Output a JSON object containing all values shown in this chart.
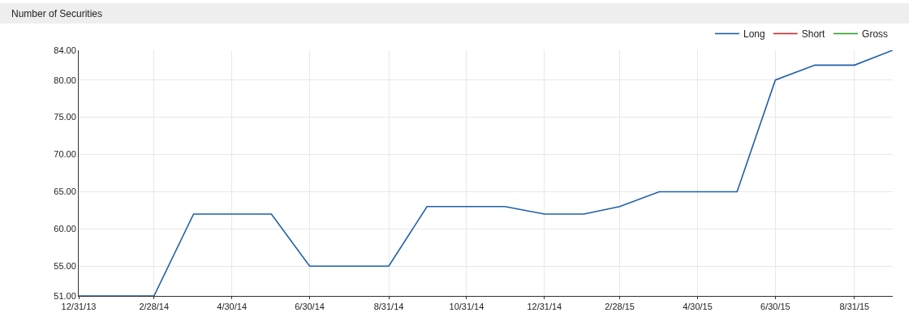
{
  "chart_data": {
    "type": "line",
    "title": "Number of Securities",
    "x": [
      "2013-12-31",
      "2014-01-31",
      "2014-02-28",
      "2014-03-31",
      "2014-04-30",
      "2014-05-31",
      "2014-06-30",
      "2014-07-31",
      "2014-08-31",
      "2014-09-30",
      "2014-10-31",
      "2014-11-30",
      "2014-12-31",
      "2015-01-31",
      "2015-02-28",
      "2015-03-31",
      "2015-04-30",
      "2015-05-31",
      "2015-06-30",
      "2015-07-31",
      "2015-08-31",
      "2015-09-30"
    ],
    "series": [
      {
        "name": "Long",
        "color": "#1f5fa8",
        "values": [
          51,
          51,
          51,
          62,
          62,
          62,
          55,
          55,
          55,
          63,
          63,
          63,
          62,
          62,
          63,
          65,
          65,
          65,
          80,
          82,
          82,
          84
        ]
      },
      {
        "name": "Short",
        "color": "#d62728",
        "values": [
          null,
          null,
          null,
          null,
          null,
          null,
          null,
          null,
          null,
          null,
          null,
          null,
          null,
          null,
          null,
          null,
          null,
          null,
          null,
          null,
          null,
          null
        ]
      },
      {
        "name": "Gross",
        "color": "#2ca02c",
        "values": [
          null,
          null,
          null,
          null,
          null,
          null,
          null,
          null,
          null,
          null,
          null,
          null,
          null,
          null,
          null,
          null,
          null,
          null,
          null,
          null,
          null,
          null
        ]
      }
    ],
    "xlim": [
      "2013-12-31",
      "2015-09-30"
    ],
    "xticks": [
      {
        "value": "2013-12-31",
        "label": "12/31/13"
      },
      {
        "value": "2014-02-28",
        "label": "2/28/14"
      },
      {
        "value": "2014-04-30",
        "label": "4/30/14"
      },
      {
        "value": "2014-06-30",
        "label": "6/30/14"
      },
      {
        "value": "2014-08-31",
        "label": "8/31/14"
      },
      {
        "value": "2014-10-31",
        "label": "10/31/14"
      },
      {
        "value": "2014-12-31",
        "label": "12/31/14"
      },
      {
        "value": "2015-02-28",
        "label": "2/28/15"
      },
      {
        "value": "2015-04-30",
        "label": "4/30/15"
      },
      {
        "value": "2015-06-30",
        "label": "6/30/15"
      },
      {
        "value": "2015-08-31",
        "label": "8/31/15"
      }
    ],
    "ylim": [
      51,
      84
    ],
    "yticks": [
      {
        "value": 51,
        "label": "51.00"
      },
      {
        "value": 55,
        "label": "55.00"
      },
      {
        "value": 60,
        "label": "60.00"
      },
      {
        "value": 65,
        "label": "65.00"
      },
      {
        "value": 70,
        "label": "70.00"
      },
      {
        "value": 75,
        "label": "75.00"
      },
      {
        "value": 80,
        "label": "80.00"
      },
      {
        "value": 84,
        "label": "84.00"
      }
    ],
    "grid": true,
    "legend": "top right",
    "marker": "none",
    "line_style": "solid"
  }
}
